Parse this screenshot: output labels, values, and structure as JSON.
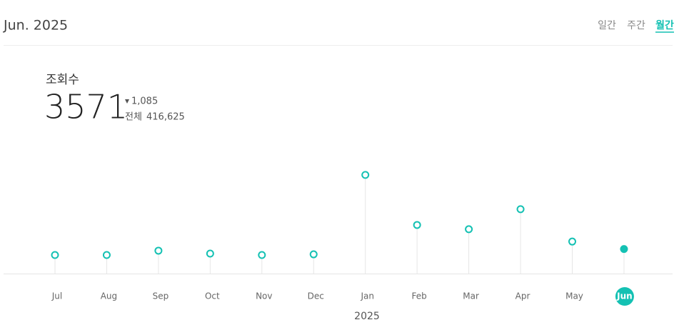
{
  "header": {
    "title": "Jun. 2025",
    "tabs": [
      "일간",
      "주간",
      "월간"
    ]
  },
  "stats": {
    "label": "조회수",
    "value": "3571",
    "change": "1,085",
    "total_label": "전체",
    "total": "416,625"
  },
  "chart_data": {
    "type": "line",
    "categories": [
      "Jul",
      "Aug",
      "Sep",
      "Oct",
      "Nov",
      "Dec",
      "Jan",
      "Feb",
      "Mar",
      "Apr",
      "May",
      "Jun"
    ],
    "xlabel": "2025",
    "series": [
      {
        "name": "조회수",
        "color": "#14c1b3",
        "values": [
          2700,
          2700,
          3330,
          2910,
          2700,
          2800,
          14350,
          7070,
          6450,
          9360,
          4656,
          3571
        ]
      }
    ],
    "ylim": [
      0,
      16000
    ]
  }
}
